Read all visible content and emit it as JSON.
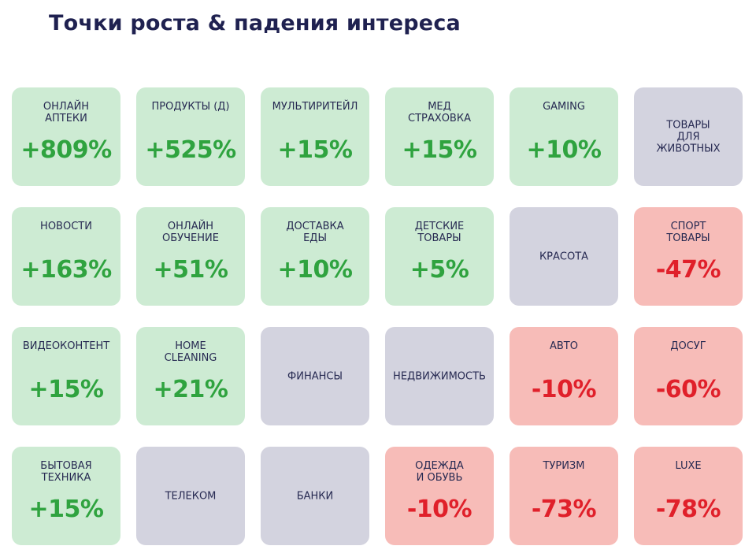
{
  "title": "Точки роста & падения интереса",
  "colors": {
    "growth_tile": "#cdebd3",
    "growth_text": "#2fa33f",
    "decline_tile": "#f7bcb8",
    "decline_text": "#e0202a",
    "neutral_tile": "#d3d3df",
    "label_text": "#272a52",
    "title_text": "#1f2150"
  },
  "tiles": [
    {
      "label": "ОНЛАЙН\nАПТЕКИ",
      "value": "+809%",
      "status": "up"
    },
    {
      "label": "ПРОДУКТЫ (Д)",
      "value": "+525%",
      "status": "up"
    },
    {
      "label": "МУЛЬТИРИТЕЙЛ",
      "value": "+15%",
      "status": "up"
    },
    {
      "label": "МЕД\nСТРАХОВКА",
      "value": "+15%",
      "status": "up"
    },
    {
      "label": "GAMING",
      "value": "+10%",
      "status": "up"
    },
    {
      "label": "ТОВАРЫ\nДЛЯ\nЖИВОТНЫХ",
      "value": "",
      "status": "neutral"
    },
    {
      "label": "НОВОСТИ",
      "value": "+163%",
      "status": "up"
    },
    {
      "label": "ОНЛАЙН\nОБУЧЕНИЕ",
      "value": "+51%",
      "status": "up"
    },
    {
      "label": "ДОСТАВКА\nЕДЫ",
      "value": "+10%",
      "status": "up"
    },
    {
      "label": "ДЕТСКИЕ\nТОВАРЫ",
      "value": "+5%",
      "status": "up"
    },
    {
      "label": "КРАСОТА",
      "value": "",
      "status": "neutral"
    },
    {
      "label": "СПОРТ\nТОВАРЫ",
      "value": "-47%",
      "status": "down"
    },
    {
      "label": "ВИДЕОКОНТЕНТ",
      "value": "+15%",
      "status": "up"
    },
    {
      "label": "HOME\nCLEANING",
      "value": "+21%",
      "status": "up"
    },
    {
      "label": "ФИНАНСЫ",
      "value": "",
      "status": "neutral"
    },
    {
      "label": "НЕДВИЖИМОСТЬ",
      "value": "",
      "status": "neutral"
    },
    {
      "label": "АВТО",
      "value": "-10%",
      "status": "down"
    },
    {
      "label": "ДОСУГ",
      "value": "-60%",
      "status": "down"
    },
    {
      "label": "БЫТОВАЯ\nТЕХНИКА",
      "value": "+15%",
      "status": "up"
    },
    {
      "label": "ТЕЛЕКОМ",
      "value": "",
      "status": "neutral"
    },
    {
      "label": "БАНКИ",
      "value": "",
      "status": "neutral"
    },
    {
      "label": "ОДЕЖДА\nИ ОБУВЬ",
      "value": "-10%",
      "status": "down"
    },
    {
      "label": "ТУРИЗМ",
      "value": "-73%",
      "status": "down"
    },
    {
      "label": "LUXE",
      "value": "-78%",
      "status": "down"
    }
  ]
}
